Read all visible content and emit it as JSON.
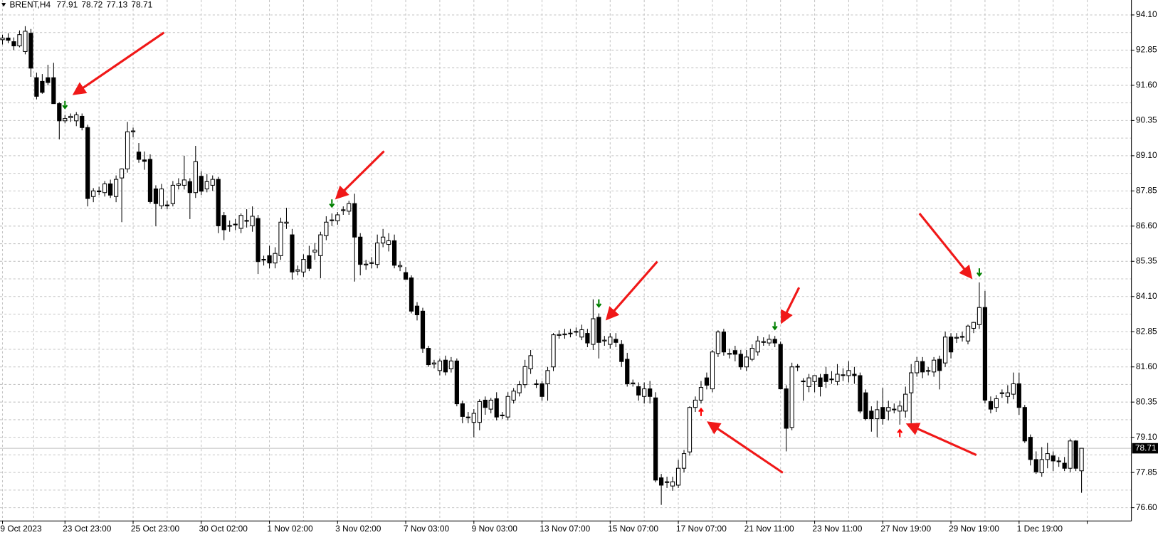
{
  "chart_data": {
    "type": "candlestick",
    "symbol": "BRENT,H4",
    "ylim": [
      76.13,
      94.63
    ],
    "yticks": [
      {
        "value": 94.1,
        "label": "94.10"
      },
      92.85,
      {
        "value": 91.6,
        "label": "91.60"
      },
      90.35,
      {
        "value": 89.1,
        "label": "89.10"
      },
      87.85,
      {
        "value": 86.6,
        "label": "86.60"
      },
      85.35,
      {
        "value": 84.1,
        "label": "84.10"
      },
      82.85,
      {
        "value": 81.6,
        "label": "81.60"
      },
      80.35,
      {
        "value": 79.1,
        "label": "79.10"
      },
      77.85,
      {
        "value": 76.6,
        "label": "76.60"
      }
    ],
    "xlim": [
      -0.44,
      198.78
    ],
    "xticks": [
      {
        "value": 0,
        "label": "9 Oct 2023"
      },
      {
        "value": 11,
        "label": "23 Oct 23:00"
      },
      {
        "value": 23,
        "label": "25 Oct 23:00"
      },
      {
        "value": 35,
        "label": "30 Oct 02:00"
      },
      {
        "value": 47,
        "label": "1 Nov 02:00"
      },
      {
        "value": 59,
        "label": "3 Nov 02:00"
      },
      {
        "value": 71,
        "label": "7 Nov 03:00"
      },
      {
        "value": 83,
        "label": "9 Nov 03:00"
      },
      {
        "value": 95,
        "label": "13 Nov 07:00"
      },
      {
        "value": 107,
        "label": "15 Nov 07:00"
      },
      {
        "value": 119,
        "label": "17 Nov 07:00"
      },
      {
        "value": 131,
        "label": "21 Nov 11:00"
      },
      {
        "value": 143,
        "label": "23 Nov 11:00"
      },
      {
        "value": 155,
        "label": "27 Nov 19:00"
      },
      {
        "value": 167,
        "label": "29 Nov 19:00"
      },
      {
        "value": 179,
        "label": "1 Dec 19:00"
      },
      {
        "value": 191,
        "label": ""
      }
    ],
    "grid": true,
    "bull_color": "#ffffff",
    "bear_color": "#000000",
    "sell_color": "#008000",
    "buy_color": "#ff0000",
    "sell_signals": [
      11,
      58,
      105,
      136,
      172
    ],
    "buy_signals": [
      123,
      158
    ],
    "candles": [
      [
        93.22,
        93.4,
        93.05,
        93.28
      ],
      [
        93.28,
        93.45,
        93.1,
        93.2
      ],
      [
        93.15,
        93.3,
        92.85,
        93.0
      ],
      [
        93.0,
        93.55,
        92.95,
        93.4
      ],
      [
        92.8,
        93.7,
        92.7,
        93.52
      ],
      [
        93.45,
        93.6,
        91.9,
        92.21
      ],
      [
        91.87,
        92.05,
        91.1,
        91.21
      ],
      [
        91.74,
        92.0,
        91.3,
        91.35
      ],
      [
        91.87,
        92.33,
        91.6,
        91.7
      ],
      [
        91.87,
        92.4,
        90.95,
        90.95
      ],
      [
        90.95,
        91.0,
        89.68,
        90.34
      ],
      [
        90.34,
        90.55,
        90.25,
        90.42
      ],
      [
        90.45,
        90.6,
        90.3,
        90.5
      ],
      [
        90.34,
        90.65,
        90.15,
        90.55
      ],
      [
        90.5,
        90.6,
        90.0,
        90.1
      ],
      [
        90.1,
        90.2,
        87.3,
        87.58
      ],
      [
        87.65,
        87.95,
        87.45,
        87.85
      ],
      [
        87.85,
        88.0,
        87.7,
        87.82
      ],
      [
        87.79,
        88.2,
        87.65,
        88.1
      ],
      [
        88.1,
        88.25,
        87.6,
        87.7
      ],
      [
        87.65,
        88.4,
        87.45,
        88.26
      ],
      [
        88.31,
        88.65,
        86.74,
        88.63
      ],
      [
        88.63,
        90.3,
        88.5,
        89.95
      ],
      [
        89.95,
        90.1,
        89.75,
        89.98
      ],
      [
        89.23,
        89.55,
        88.85,
        88.97
      ],
      [
        88.95,
        89.25,
        88.6,
        88.9
      ],
      [
        88.97,
        89.15,
        87.4,
        87.47
      ],
      [
        87.92,
        88.05,
        86.6,
        87.4
      ],
      [
        87.32,
        88.1,
        87.2,
        87.92
      ],
      [
        87.35,
        87.5,
        87.2,
        87.32
      ],
      [
        87.4,
        88.2,
        87.3,
        88.05
      ],
      [
        88.05,
        88.3,
        87.9,
        88.1
      ],
      [
        88.05,
        89.1,
        87.9,
        88.24
      ],
      [
        88.18,
        88.3,
        86.85,
        87.79
      ],
      [
        87.79,
        89.45,
        87.6,
        88.89
      ],
      [
        88.37,
        88.55,
        87.7,
        87.84
      ],
      [
        87.92,
        88.45,
        87.8,
        88.18
      ],
      [
        88.05,
        88.4,
        87.85,
        88.26
      ],
      [
        88.26,
        88.35,
        86.35,
        86.61
      ],
      [
        86.98,
        87.1,
        86.1,
        86.47
      ],
      [
        86.6,
        86.8,
        86.4,
        86.62
      ],
      [
        86.67,
        86.85,
        86.45,
        86.65
      ],
      [
        86.52,
        87.05,
        86.35,
        86.98
      ],
      [
        86.8,
        87.2,
        86.55,
        86.78
      ],
      [
        86.61,
        87.3,
        86.4,
        86.95
      ],
      [
        86.87,
        87.0,
        84.9,
        85.34
      ],
      [
        85.42,
        85.55,
        85.2,
        85.4
      ],
      [
        85.55,
        85.9,
        85.1,
        85.29
      ],
      [
        85.29,
        85.85,
        85.1,
        85.63
      ],
      [
        85.55,
        86.9,
        85.4,
        86.74
      ],
      [
        86.7,
        87.25,
        86.5,
        86.74
      ],
      [
        86.29,
        86.5,
        84.7,
        84.97
      ],
      [
        85.0,
        85.2,
        84.85,
        85.05
      ],
      [
        84.97,
        85.6,
        84.8,
        85.42
      ],
      [
        85.55,
        85.9,
        85.0,
        85.1
      ],
      [
        85.68,
        86.0,
        85.4,
        85.75
      ],
      [
        85.55,
        86.4,
        84.75,
        86.29
      ],
      [
        86.26,
        86.95,
        86.1,
        86.74
      ],
      [
        86.8,
        87.05,
        86.6,
        86.82
      ],
      [
        86.79,
        87.1,
        86.65,
        87.0
      ],
      [
        87.15,
        87.3,
        87.0,
        87.18
      ],
      [
        87.13,
        87.5,
        87.0,
        87.4
      ],
      [
        87.4,
        87.75,
        84.63,
        86.21
      ],
      [
        86.21,
        86.35,
        84.85,
        85.24
      ],
      [
        85.22,
        85.4,
        85.05,
        85.25
      ],
      [
        85.3,
        85.5,
        85.1,
        85.28
      ],
      [
        85.24,
        86.3,
        85.1,
        86.0
      ],
      [
        86.0,
        86.5,
        85.85,
        86.21
      ],
      [
        85.95,
        86.35,
        85.7,
        86.08
      ],
      [
        86.08,
        86.3,
        85.1,
        85.21
      ],
      [
        85.16,
        85.35,
        85.0,
        85.2
      ],
      [
        84.95,
        85.15,
        84.7,
        84.71
      ],
      [
        84.76,
        84.85,
        83.5,
        83.58
      ],
      [
        83.76,
        83.9,
        83.25,
        83.45
      ],
      [
        83.58,
        83.7,
        82.1,
        82.26
      ],
      [
        82.26,
        82.35,
        81.6,
        81.68
      ],
      [
        81.7,
        81.85,
        81.55,
        81.74
      ],
      [
        81.47,
        81.9,
        81.3,
        81.81
      ],
      [
        81.84,
        82.0,
        81.3,
        81.42
      ],
      [
        81.53,
        81.95,
        81.4,
        81.81
      ],
      [
        81.81,
        81.9,
        80.2,
        80.29
      ],
      [
        80.29,
        80.4,
        79.6,
        79.84
      ],
      [
        79.82,
        80.0,
        79.6,
        79.8
      ],
      [
        79.63,
        80.1,
        79.1,
        79.95
      ],
      [
        79.63,
        80.45,
        79.35,
        80.37
      ],
      [
        80.42,
        80.55,
        79.9,
        80.16
      ],
      [
        80.1,
        80.5,
        79.95,
        80.42
      ],
      [
        80.47,
        80.7,
        79.7,
        79.82
      ],
      [
        79.87,
        80.0,
        79.75,
        79.89
      ],
      [
        79.82,
        80.7,
        79.7,
        80.55
      ],
      [
        80.42,
        80.85,
        80.3,
        80.74
      ],
      [
        80.68,
        81.1,
        80.55,
        80.97
      ],
      [
        80.97,
        81.85,
        80.85,
        81.61
      ],
      [
        81.53,
        82.2,
        81.35,
        82.0
      ],
      [
        80.99,
        81.15,
        80.85,
        81.0
      ],
      [
        81.0,
        81.1,
        80.4,
        80.55
      ],
      [
        81.0,
        81.6,
        80.4,
        81.47
      ],
      [
        81.6,
        82.8,
        81.45,
        82.74
      ],
      [
        82.72,
        82.9,
        82.6,
        82.75
      ],
      [
        82.74,
        82.95,
        82.6,
        82.77
      ],
      [
        82.79,
        82.95,
        82.65,
        82.8
      ],
      [
        82.84,
        83.0,
        82.7,
        82.86
      ],
      [
        82.66,
        83.1,
        82.55,
        82.92
      ],
      [
        82.79,
        82.95,
        82.3,
        82.45
      ],
      [
        82.4,
        84.0,
        82.2,
        83.31
      ],
      [
        83.36,
        83.5,
        81.9,
        82.47
      ],
      [
        82.52,
        82.7,
        82.35,
        82.55
      ],
      [
        82.4,
        82.8,
        82.25,
        82.66
      ],
      [
        82.58,
        82.8,
        82.3,
        82.47
      ],
      [
        82.4,
        82.55,
        81.6,
        81.79
      ],
      [
        81.87,
        82.1,
        80.9,
        81.0
      ],
      [
        81.0,
        81.15,
        80.9,
        81.03
      ],
      [
        80.9,
        81.05,
        80.4,
        80.6
      ],
      [
        80.55,
        81.05,
        80.3,
        80.82
      ],
      [
        80.82,
        81.1,
        80.3,
        80.55
      ],
      [
        80.5,
        80.7,
        77.5,
        77.58
      ],
      [
        77.66,
        77.8,
        76.7,
        77.4
      ],
      [
        77.52,
        77.7,
        77.3,
        77.5
      ],
      [
        77.37,
        77.7,
        77.2,
        77.52
      ],
      [
        77.4,
        78.3,
        77.3,
        78.0
      ],
      [
        78.0,
        78.65,
        77.85,
        78.52
      ],
      [
        78.58,
        80.2,
        78.45,
        80.16
      ],
      [
        80.16,
        80.55,
        80.0,
        80.42
      ],
      [
        80.42,
        81.1,
        80.3,
        80.87
      ],
      [
        81.21,
        81.4,
        80.8,
        80.95
      ],
      [
        80.82,
        82.2,
        80.7,
        82.13
      ],
      [
        82.08,
        82.9,
        81.95,
        82.84
      ],
      [
        82.84,
        82.95,
        82.0,
        82.13
      ],
      [
        82.05,
        82.25,
        81.9,
        82.08
      ],
      [
        82.18,
        82.35,
        81.8,
        82.05
      ],
      [
        82.05,
        82.2,
        81.5,
        81.6
      ],
      [
        81.6,
        82.2,
        81.45,
        81.95
      ],
      [
        81.87,
        82.4,
        81.8,
        82.26
      ],
      [
        82.13,
        82.7,
        82.0,
        82.52
      ],
      [
        82.47,
        82.65,
        82.35,
        82.5
      ],
      [
        82.45,
        82.75,
        82.35,
        82.58
      ],
      [
        82.58,
        82.7,
        82.3,
        82.45
      ],
      [
        82.4,
        82.5,
        80.8,
        80.82
      ],
      [
        80.82,
        80.95,
        78.6,
        79.42
      ],
      [
        79.45,
        81.75,
        79.35,
        81.6
      ],
      [
        81.62,
        81.7,
        81.45,
        81.6
      ],
      [
        81.08,
        81.2,
        80.4,
        81.1
      ],
      [
        80.9,
        81.35,
        80.7,
        81.21
      ],
      [
        81.08,
        81.3,
        80.7,
        81.29
      ],
      [
        81.21,
        81.35,
        80.55,
        80.9
      ],
      [
        81.33,
        81.6,
        80.85,
        81.08
      ],
      [
        81.15,
        81.45,
        81.0,
        81.17
      ],
      [
        81.08,
        81.7,
        80.95,
        81.34
      ],
      [
        81.3,
        81.55,
        81.1,
        81.32
      ],
      [
        81.29,
        81.8,
        81.05,
        81.47
      ],
      [
        81.34,
        81.6,
        81.0,
        81.29
      ],
      [
        81.29,
        81.4,
        79.95,
        80.03
      ],
      [
        80.68,
        80.8,
        79.7,
        79.76
      ],
      [
        80.03,
        80.2,
        79.3,
        79.76
      ],
      [
        79.76,
        80.4,
        79.1,
        80.08
      ],
      [
        80.16,
        80.85,
        79.55,
        79.76
      ],
      [
        80.03,
        80.4,
        79.7,
        80.16
      ],
      [
        80.08,
        80.3,
        79.95,
        80.1
      ],
      [
        80.03,
        80.4,
        79.55,
        80.21
      ],
      [
        80.03,
        80.9,
        79.8,
        80.63
      ],
      [
        80.68,
        81.7,
        79.6,
        81.39
      ],
      [
        81.39,
        81.95,
        81.25,
        81.79
      ],
      [
        81.79,
        81.95,
        81.2,
        81.42
      ],
      [
        81.45,
        81.6,
        81.3,
        81.47
      ],
      [
        81.42,
        81.95,
        81.25,
        81.84
      ],
      [
        81.87,
        82.0,
        80.8,
        81.47
      ],
      [
        81.74,
        82.85,
        81.6,
        82.66
      ],
      [
        82.66,
        82.8,
        81.9,
        82.13
      ],
      [
        82.62,
        82.8,
        82.45,
        82.65
      ],
      [
        82.66,
        82.85,
        82.5,
        82.68
      ],
      [
        82.52,
        83.1,
        82.4,
        83.05
      ],
      [
        82.97,
        83.2,
        82.8,
        83.18
      ],
      [
        83.1,
        84.6,
        82.95,
        83.71
      ],
      [
        83.71,
        84.3,
        80.3,
        80.42
      ],
      [
        80.37,
        80.55,
        79.95,
        80.1
      ],
      [
        80.16,
        80.6,
        80.0,
        80.47
      ],
      [
        80.65,
        80.8,
        80.5,
        80.68
      ],
      [
        80.55,
        80.95,
        80.3,
        80.68
      ],
      [
        80.63,
        81.4,
        80.45,
        81.0
      ],
      [
        81.0,
        81.4,
        79.9,
        80.16
      ],
      [
        80.16,
        80.25,
        78.9,
        78.97
      ],
      [
        79.1,
        79.2,
        78.1,
        78.31
      ],
      [
        78.31,
        78.6,
        77.8,
        77.87
      ],
      [
        77.84,
        78.75,
        77.7,
        78.31
      ],
      [
        78.31,
        78.9,
        78.0,
        78.52
      ],
      [
        78.44,
        78.6,
        77.9,
        78.26
      ],
      [
        78.24,
        78.4,
        78.05,
        78.26
      ],
      [
        78.18,
        78.4,
        77.9,
        78.0
      ],
      [
        78.0,
        79.05,
        77.85,
        78.97
      ],
      [
        78.97,
        79.0,
        77.9,
        78.0
      ],
      [
        77.91,
        78.72,
        77.13,
        78.71
      ]
    ]
  }
}
